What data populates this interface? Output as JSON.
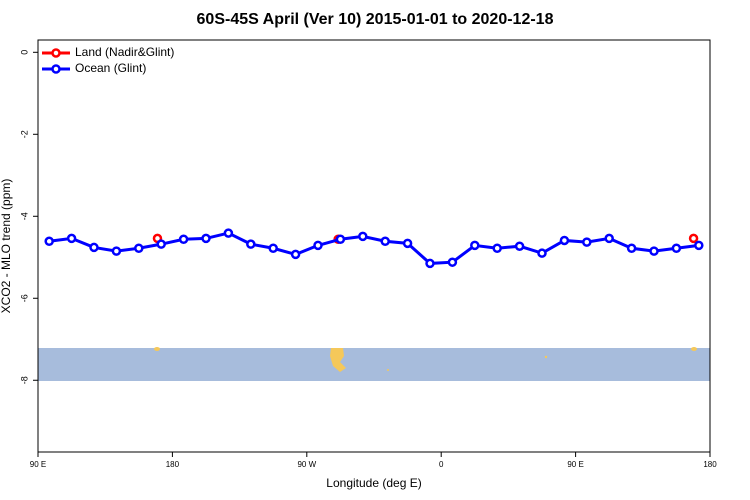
{
  "chart_data": {
    "type": "line",
    "title": "60S-45S April (Ver 10)   2015-01-01 to 2020-12-18",
    "xlabel": "Longitude (deg E)",
    "ylabel": "XCO2 - MLO trend (ppm)",
    "xlim": [
      90,
      540
    ],
    "xticks": [
      {
        "value": 90,
        "label": "90 E"
      },
      180,
      {
        "value": 270,
        "label": "90 W"
      },
      {
        "value": 360,
        "label": "0"
      },
      {
        "value": 450,
        "label": "90 E"
      },
      {
        "value": 540,
        "label": "180"
      }
    ],
    "ylim": [
      -9.75,
      0.3
    ],
    "yticks": [
      0,
      -2,
      -4,
      -6,
      -8
    ],
    "legend": "top-left",
    "series": [
      {
        "name": "Land (Nadir&Glint)",
        "color": "#ff0000",
        "x": [
          170,
          291,
          529
        ],
        "values": [
          -4.54,
          -4.56,
          -4.54
        ]
      },
      {
        "name": "Ocean (Glint)",
        "color": "#0000ff",
        "x": [
          97.5,
          112.5,
          127.5,
          142.5,
          157.5,
          172.5,
          187.5,
          202.5,
          217.5,
          232.5,
          247.5,
          262.5,
          277.5,
          292.5,
          307.5,
          322.5,
          337.5,
          352.5,
          367.5,
          382.5,
          397.5,
          412.5,
          427.5,
          442.5,
          457.5,
          472.5,
          487.5,
          502.5,
          517.5,
          532.5
        ],
        "values": [
          -4.61,
          -4.54,
          -4.76,
          -4.85,
          -4.78,
          -4.68,
          -4.56,
          -4.54,
          -4.41,
          -4.68,
          -4.78,
          -4.93,
          -4.71,
          -4.56,
          -4.49,
          -4.61,
          -4.66,
          -5.15,
          -5.12,
          -4.71,
          -4.78,
          -4.73,
          -4.9,
          -4.59,
          -4.63,
          -4.54,
          -4.78,
          -4.85,
          -4.78,
          -4.71
        ]
      }
    ]
  }
}
